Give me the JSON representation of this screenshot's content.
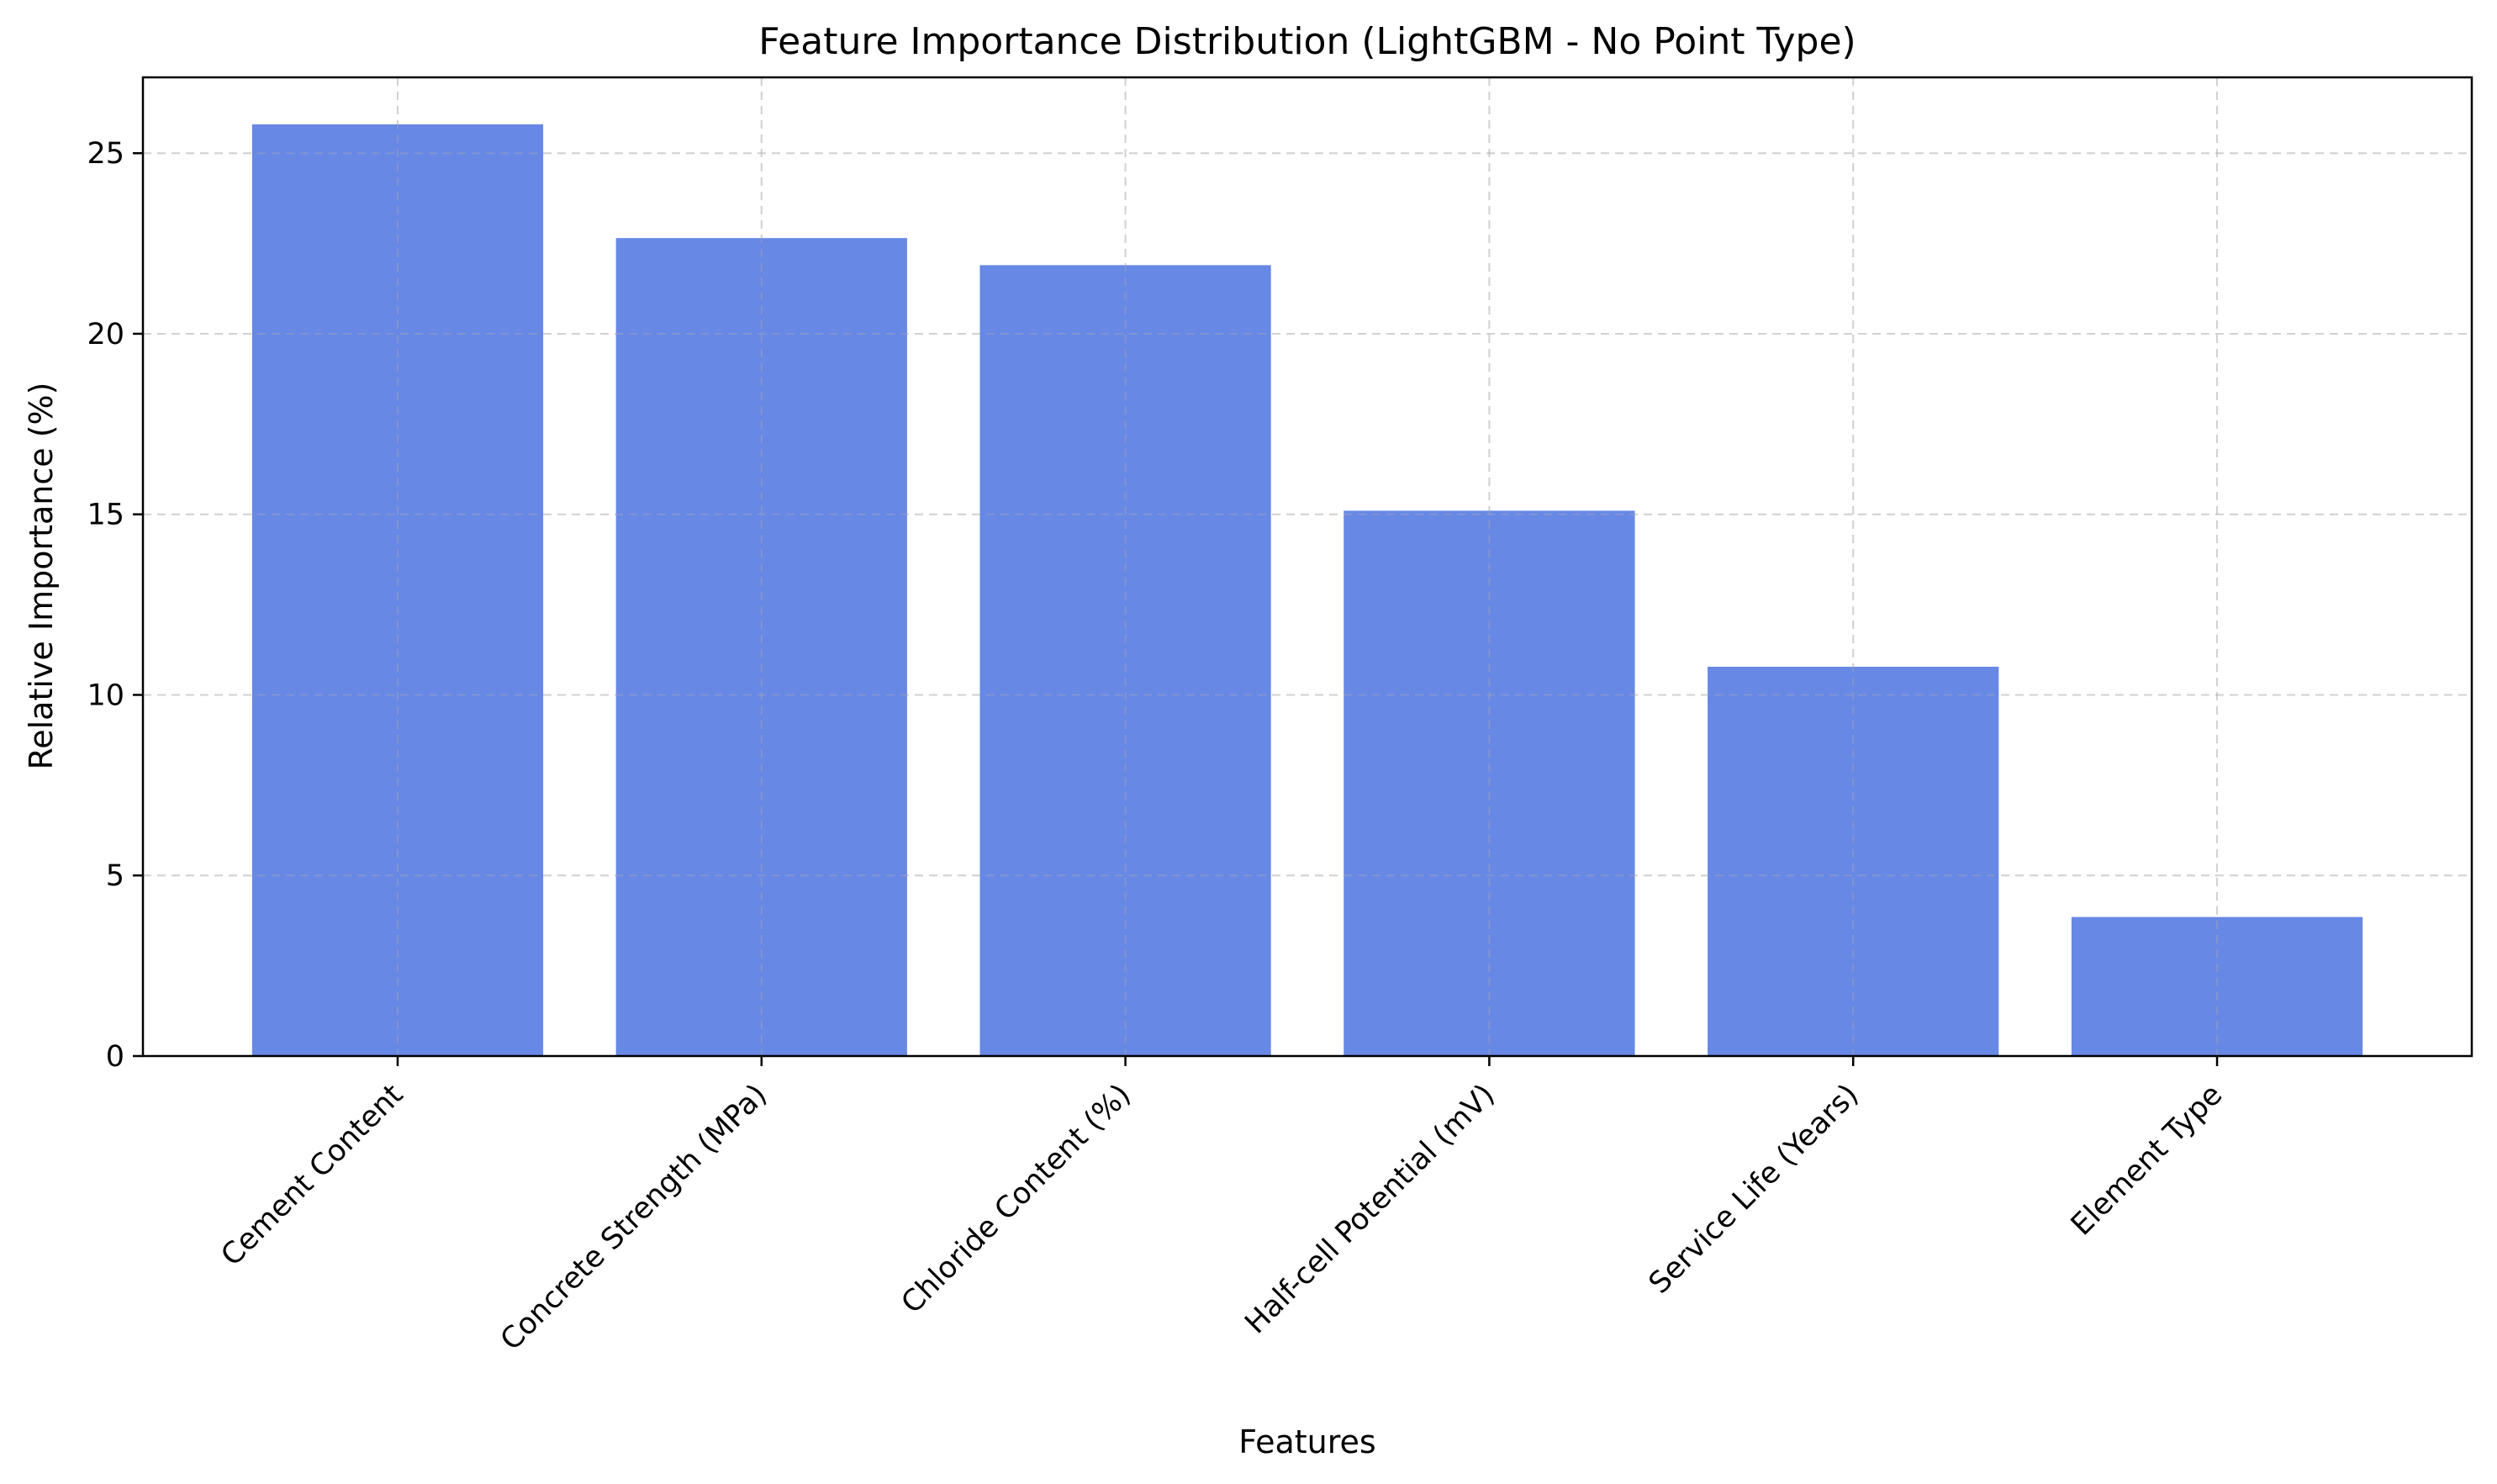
{
  "chart_data": {
    "type": "bar",
    "title": "Feature Importance Distribution (LightGBM - No Point Type)",
    "xlabel": "Features",
    "ylabel": "Relative Importance (%)",
    "categories": [
      "Cement Content",
      "Concrete Strength (MPa)",
      "Chloride Content (%)",
      "Half-cell Potential (mV)",
      "Service Life (Years)",
      "Element Type"
    ],
    "values": [
      25.8,
      22.65,
      21.9,
      15.1,
      10.78,
      3.85
    ],
    "ylim": [
      0,
      27.1
    ],
    "yticks": [
      0,
      5,
      10,
      15,
      20,
      25
    ],
    "grid": true,
    "bar_color": "#6788e5",
    "legend": "none"
  }
}
